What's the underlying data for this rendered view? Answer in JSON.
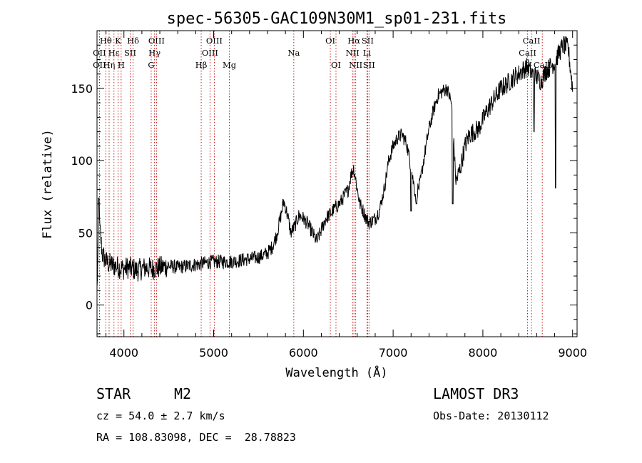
{
  "chart_data": {
    "type": "line",
    "title": "spec-56305-GAC109N30M1_sp01-231.fits",
    "xlabel": "Wavelength (Å)",
    "ylabel": "Flux (relative)",
    "xlim": [
      3700,
      9050
    ],
    "ylim": [
      -22,
      190
    ],
    "xticks": [
      4000,
      5000,
      6000,
      7000,
      8000,
      9000
    ],
    "yticks": [
      0,
      50,
      100,
      150
    ],
    "spectrum_envelope": {
      "x": [
        3700,
        3720,
        3760,
        3800,
        3850,
        3900,
        3950,
        4000,
        4050,
        4100,
        4150,
        4200,
        4250,
        4300,
        4400,
        4500,
        4600,
        4700,
        4800,
        4900,
        5000,
        5100,
        5200,
        5300,
        5400,
        5500,
        5600,
        5650,
        5700,
        5750,
        5780,
        5800,
        5830,
        5860,
        5900,
        5950,
        6000,
        6050,
        6100,
        6150,
        6200,
        6250,
        6300,
        6350,
        6400,
        6450,
        6500,
        6530,
        6560,
        6580,
        6600,
        6630,
        6660,
        6700,
        6730,
        6760,
        6800,
        6850,
        6900,
        6950,
        7000,
        7050,
        7100,
        7150,
        7200,
        7250,
        7300,
        7350,
        7400,
        7450,
        7500,
        7550,
        7600,
        7650,
        7700,
        7750,
        7800,
        7850,
        7900,
        7950,
        8000,
        8050,
        8100,
        8150,
        8200,
        8250,
        8300,
        8350,
        8400,
        8450,
        8500,
        8550,
        8600,
        8650,
        8700,
        8750,
        8800,
        8850,
        8900,
        8950,
        9000
      ],
      "y": [
        10,
        60,
        35,
        30,
        28,
        27,
        26,
        25,
        26,
        25,
        24,
        25,
        26,
        25,
        26,
        27,
        26,
        27,
        28,
        29,
        30,
        30,
        30,
        31,
        32,
        33,
        36,
        40,
        48,
        62,
        72,
        68,
        60,
        50,
        54,
        62,
        60,
        56,
        50,
        44,
        52,
        60,
        63,
        67,
        70,
        75,
        80,
        90,
        95,
        88,
        80,
        70,
        66,
        60,
        57,
        58,
        60,
        66,
        80,
        100,
        110,
        116,
        118,
        112,
        95,
        76,
        84,
        104,
        122,
        135,
        145,
        148,
        150,
        140,
        85,
        95,
        110,
        118,
        120,
        122,
        128,
        135,
        140,
        145,
        150,
        152,
        155,
        158,
        160,
        163,
        165,
        160,
        158,
        155,
        162,
        165,
        168,
        175,
        180,
        178,
        150
      ]
    },
    "absorption_dips": [
      {
        "x": 7665,
        "y": 70
      },
      {
        "x": 7260,
        "y": 70
      },
      {
        "x": 7200,
        "y": 65
      },
      {
        "x": 8810,
        "y": 81
      },
      {
        "x": 8570,
        "y": 120
      }
    ],
    "emission_spikes": [
      {
        "x": 3720,
        "y": 74
      }
    ],
    "line_markers": [
      {
        "x": 3727,
        "label": "OII",
        "row": 2
      },
      {
        "x": 3727,
        "label": "OII",
        "row": 3
      },
      {
        "x": 3798,
        "label": "Hθ",
        "row": 1
      },
      {
        "x": 3835,
        "label": "Hη",
        "row": 3
      },
      {
        "x": 3889,
        "label": "Hε",
        "row": 2
      },
      {
        "x": 3934,
        "label": "K",
        "row": 1
      },
      {
        "x": 3969,
        "label": "H",
        "row": 3
      },
      {
        "x": 4070,
        "label": "SII",
        "row": 2
      },
      {
        "x": 4102,
        "label": "Hδ",
        "row": 1
      },
      {
        "x": 4304,
        "label": "G",
        "row": 3
      },
      {
        "x": 4341,
        "label": "Hγ",
        "row": 2
      },
      {
        "x": 4363,
        "label": "OIII",
        "row": 1
      },
      {
        "x": 4861,
        "label": "Hβ",
        "row": 3
      },
      {
        "x": 4959,
        "label": "OIII",
        "row": 2
      },
      {
        "x": 5007,
        "label": "OIII",
        "row": 1
      },
      {
        "x": 5175,
        "label": "Mg",
        "row": 3
      },
      {
        "x": 5893,
        "label": "Na",
        "row": 2
      },
      {
        "x": 6300,
        "label": "OI",
        "row": 1
      },
      {
        "x": 6363,
        "label": "OI",
        "row": 3
      },
      {
        "x": 6548,
        "label": "NII",
        "row": 2
      },
      {
        "x": 6563,
        "label": "Hα",
        "row": 1
      },
      {
        "x": 6583,
        "label": "NII",
        "row": 3
      },
      {
        "x": 6708,
        "label": "Li",
        "row": 2
      },
      {
        "x": 6716,
        "label": "SII",
        "row": 1
      },
      {
        "x": 6731,
        "label": "SII",
        "row": 3
      },
      {
        "x": 8498,
        "label": "CaII",
        "row": 2
      },
      {
        "x": 8542,
        "label": "CaII",
        "row": 1
      },
      {
        "x": 8662,
        "label": "CaII",
        "row": 3
      }
    ]
  },
  "info": {
    "object_class": "STAR",
    "subclass": "M2",
    "survey": "LAMOST DR3",
    "redshift": "cz = 54.0 ± 2.7 km/s",
    "obs_date": "Obs-Date: 20130112",
    "coords": "RA = 108.83098, DEC =  28.78823"
  }
}
